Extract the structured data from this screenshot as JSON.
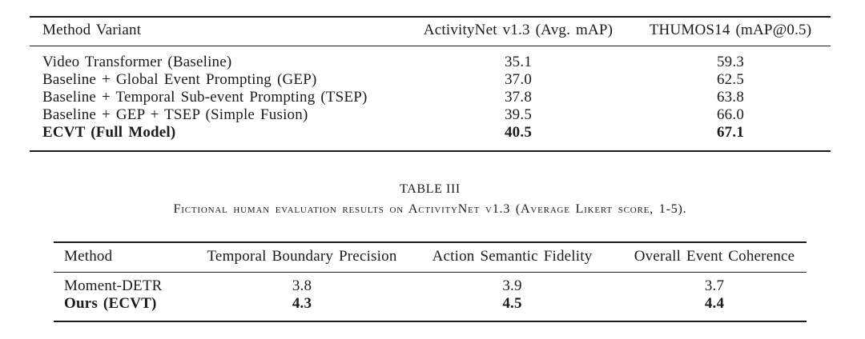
{
  "page": {
    "background": "#ffffff",
    "text_color": "#1b1b1b"
  },
  "table1": {
    "name": "ablation-results-table",
    "columns": [
      "Method Variant",
      "ActivityNet v1.3 (Avg. mAP)",
      "THUMOS14 (mAP@0.5)"
    ],
    "align": [
      "left",
      "center",
      "center"
    ],
    "rows": [
      {
        "cells": [
          "Video Transformer (Baseline)",
          "35.1",
          "59.3"
        ],
        "bold": false
      },
      {
        "cells": [
          "Baseline + Global Event Prompting (GEP)",
          "37.0",
          "62.5"
        ],
        "bold": false
      },
      {
        "cells": [
          "Baseline + Temporal Sub-event Prompting (TSEP)",
          "37.8",
          "63.8"
        ],
        "bold": false
      },
      {
        "cells": [
          "Baseline + GEP + TSEP (Simple Fusion)",
          "39.5",
          "66.0"
        ],
        "bold": false
      },
      {
        "cells": [
          "ECVT (Full Model)",
          "40.5",
          "67.1"
        ],
        "bold": true
      }
    ]
  },
  "caption": {
    "label": "TABLE III",
    "text": "Fictional human evaluation results on ActivityNet v1.3 (Average Likert score, 1-5)."
  },
  "table2": {
    "name": "human-evaluation-table",
    "columns": [
      "Method",
      "Temporal Boundary Precision",
      "Action Semantic Fidelity",
      "Overall Event Coherence"
    ],
    "align": [
      "left",
      "center",
      "center",
      "center"
    ],
    "rows": [
      {
        "cells": [
          "Moment-DETR",
          "3.8",
          "3.9",
          "3.7"
        ],
        "bold": false
      },
      {
        "cells": [
          "Ours (ECVT)",
          "4.3",
          "4.5",
          "4.4"
        ],
        "bold": true
      }
    ]
  }
}
